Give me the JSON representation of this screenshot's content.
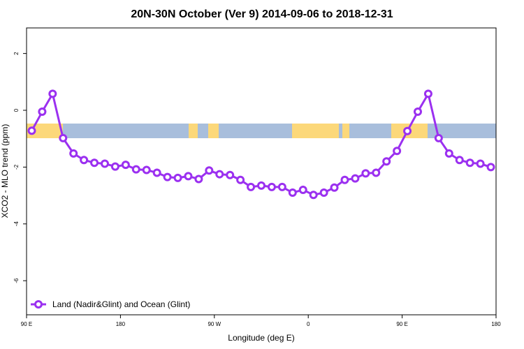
{
  "chart_data": {
    "type": "line",
    "title": "20N-30N October (Ver 9)   2014-09-06 to 2018-12-31",
    "xlabel": "Longitude (deg E)",
    "ylabel": "XCO2 - MLO trend (ppm)",
    "xlim": [
      90,
      450
    ],
    "ylim": [
      -7.2,
      2.9
    ],
    "x_ticks": [
      {
        "value": 90,
        "label": "90 E"
      },
      {
        "value": 162,
        "label": "180"
      },
      {
        "value": 234,
        "label": "90 W"
      },
      {
        "value": 306,
        "label": "0"
      },
      {
        "value": 378,
        "label": "90 E"
      },
      {
        "value": 450,
        "label": "180"
      }
    ],
    "y_ticks": [
      {
        "value": 2,
        "label": "2"
      },
      {
        "value": 0,
        "label": "0"
      },
      {
        "value": -2,
        "label": "-2"
      },
      {
        "value": -4,
        "label": "-4"
      },
      {
        "value": -6,
        "label": "-6"
      }
    ],
    "grid": false,
    "legend_position": "bottom-left",
    "series": [
      {
        "name": "Land (Nadir&Glint) and Ocean (Glint)",
        "color": "#9b30f0",
        "x": [
          94,
          102,
          110,
          118,
          126,
          134,
          142,
          150,
          158,
          166,
          174,
          182,
          190,
          198,
          206,
          214,
          222,
          230,
          238,
          246,
          254,
          262,
          270,
          278,
          286,
          294,
          302,
          310,
          318,
          326,
          334,
          342,
          350,
          358,
          366,
          374,
          382,
          390,
          398,
          406,
          414,
          422,
          430,
          438,
          446
        ],
        "y": [
          -0.72,
          -0.05,
          0.58,
          -0.98,
          -1.52,
          -1.75,
          -1.85,
          -1.88,
          -1.98,
          -1.92,
          -2.08,
          -2.1,
          -2.2,
          -2.35,
          -2.38,
          -2.32,
          -2.42,
          -2.12,
          -2.25,
          -2.28,
          -2.45,
          -2.7,
          -2.65,
          -2.7,
          -2.7,
          -2.9,
          -2.8,
          -2.98,
          -2.9,
          -2.72,
          -2.45,
          -2.4,
          -2.22,
          -2.2,
          -1.8,
          -1.43,
          -0.73,
          -0.05,
          0.58,
          -0.98,
          -1.52,
          -1.75,
          -1.85,
          -1.88,
          -2.0
        ]
      }
    ]
  },
  "map_strip": {
    "land_color": "#fcd87a",
    "ocean_color": "#a8bedc"
  }
}
